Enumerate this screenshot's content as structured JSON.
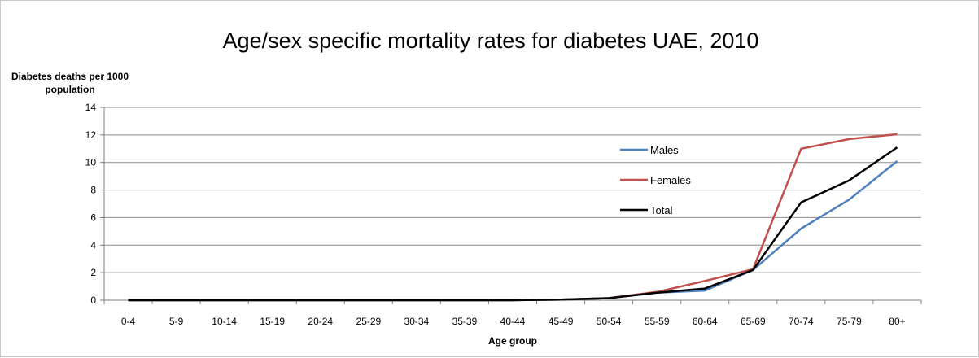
{
  "chart_data": {
    "type": "line",
    "title": "Age/sex specific mortality rates for diabetes UAE, 2010",
    "ylabel": "Diabetes deaths per 1000 population",
    "xlabel": "Age group",
    "ylim": [
      0,
      14
    ],
    "y_ticks": [
      0,
      2,
      4,
      6,
      8,
      10,
      12,
      14
    ],
    "grid": true,
    "legend_position": "inside-right",
    "categories": [
      "0-4",
      "5-9",
      "10-14",
      "15-19",
      "20-24",
      "25-29",
      "30-34",
      "35-39",
      "40-44",
      "45-49",
      "50-54",
      "55-59",
      "60-64",
      "65-69",
      "70-74",
      "75-79",
      "80+"
    ],
    "series": [
      {
        "name": "Males",
        "color": "#4f81bd",
        "values": [
          0,
          0,
          0,
          0,
          0,
          0,
          0,
          0,
          0,
          0.05,
          0.15,
          0.55,
          0.7,
          2.2,
          5.2,
          7.3,
          10.1
        ]
      },
      {
        "name": "Females",
        "color": "#c0504d",
        "values": [
          0,
          0,
          0,
          0,
          0,
          0,
          0,
          0,
          0,
          0.05,
          0.15,
          0.6,
          1.4,
          2.25,
          11.0,
          11.7,
          12.05
        ]
      },
      {
        "name": "Total",
        "color": "#000000",
        "values": [
          0,
          0,
          0,
          0,
          0,
          0,
          0,
          0,
          0,
          0.05,
          0.15,
          0.55,
          0.85,
          2.2,
          7.1,
          8.7,
          11.1
        ]
      }
    ]
  }
}
